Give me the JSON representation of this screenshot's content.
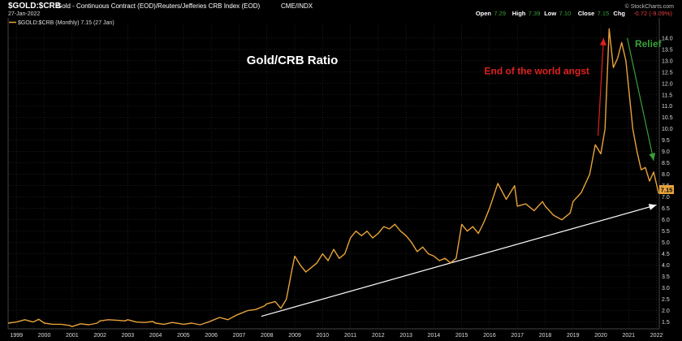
{
  "header": {
    "symbol": "$GOLD:$CRB",
    "description": "Gold - Continuous Contract (EOD)/Reuters/Jefferies CRB Index (EOD)",
    "exchange": "CME/INDX",
    "date": "27-Jan-2022",
    "stats": [
      {
        "label": "Open",
        "value": "7.29"
      },
      {
        "label": "High",
        "value": "7.39"
      },
      {
        "label": "Low",
        "value": "7.10"
      },
      {
        "label": "Close",
        "value": "7.15"
      },
      {
        "label": "Chg",
        "value": "-0.72 (-9.09%)"
      }
    ],
    "legend": "$GOLD:$CRB (Monthly) 7.15 (27 Jan)",
    "watermark": "© StockCharts.com"
  },
  "colors": {
    "background": "#000000",
    "price_line": "#e8a33a",
    "grid": "#2e2e2e",
    "axis_text": "#dddddd",
    "annotation_red": "#e02020",
    "annotation_green": "#3aa03a",
    "trendline": "#ffffff",
    "stat_up": "#3aa03a",
    "stat_down": "#e04040"
  },
  "chart_data": {
    "type": "line",
    "title": "Gold/CRB Ratio",
    "xlabel": "",
    "ylabel": "",
    "xlim": [
      1998.7,
      2022.1
    ],
    "ylim": [
      1.2,
      14.6
    ],
    "y_scale": "linear",
    "grid": true,
    "x_ticks": [
      "1999",
      "2000",
      "2001",
      "2002",
      "2003",
      "2004",
      "2005",
      "2006",
      "2007",
      "2008",
      "2009",
      "2010",
      "2011",
      "2012",
      "2013",
      "2014",
      "2015",
      "2016",
      "2017",
      "2018",
      "2019",
      "2020",
      "2021",
      "2022"
    ],
    "y_ticks": [
      "1.5",
      "2.0",
      "2.5",
      "3.0",
      "3.5",
      "4.0",
      "4.5",
      "5.0",
      "5.5",
      "6.0",
      "6.5",
      "7.0",
      "7.5",
      "8.0",
      "8.5",
      "9.0",
      "9.5",
      "10.0",
      "10.5",
      "11.0",
      "11.5",
      "12.0",
      "12.5",
      "13.0",
      "13.5",
      "14.0"
    ],
    "last_value_label": "7.15",
    "series": [
      {
        "name": "$GOLD:$CRB (Monthly)",
        "points": [
          [
            1998.7,
            1.45
          ],
          [
            1999.0,
            1.5
          ],
          [
            1999.3,
            1.6
          ],
          [
            1999.6,
            1.5
          ],
          [
            1999.8,
            1.62
          ],
          [
            2000.0,
            1.45
          ],
          [
            2000.3,
            1.4
          ],
          [
            2000.6,
            1.4
          ],
          [
            2000.9,
            1.35
          ],
          [
            2001.0,
            1.3
          ],
          [
            2001.3,
            1.42
          ],
          [
            2001.6,
            1.38
          ],
          [
            2001.9,
            1.45
          ],
          [
            2002.0,
            1.55
          ],
          [
            2002.3,
            1.6
          ],
          [
            2002.6,
            1.58
          ],
          [
            2002.9,
            1.55
          ],
          [
            2003.0,
            1.6
          ],
          [
            2003.3,
            1.5
          ],
          [
            2003.6,
            1.48
          ],
          [
            2003.9,
            1.52
          ],
          [
            2004.0,
            1.45
          ],
          [
            2004.3,
            1.4
          ],
          [
            2004.6,
            1.48
          ],
          [
            2004.9,
            1.42
          ],
          [
            2005.0,
            1.4
          ],
          [
            2005.3,
            1.45
          ],
          [
            2005.6,
            1.38
          ],
          [
            2005.9,
            1.5
          ],
          [
            2006.0,
            1.55
          ],
          [
            2006.3,
            1.7
          ],
          [
            2006.6,
            1.6
          ],
          [
            2006.9,
            1.8
          ],
          [
            2007.0,
            1.85
          ],
          [
            2007.3,
            2.0
          ],
          [
            2007.6,
            2.05
          ],
          [
            2007.9,
            2.2
          ],
          [
            2008.0,
            2.3
          ],
          [
            2008.3,
            2.4
          ],
          [
            2008.5,
            2.1
          ],
          [
            2008.7,
            2.5
          ],
          [
            2008.9,
            3.8
          ],
          [
            2009.0,
            4.4
          ],
          [
            2009.2,
            4.0
          ],
          [
            2009.4,
            3.7
          ],
          [
            2009.6,
            3.9
          ],
          [
            2009.8,
            4.1
          ],
          [
            2010.0,
            4.5
          ],
          [
            2010.2,
            4.2
          ],
          [
            2010.4,
            4.7
          ],
          [
            2010.6,
            4.3
          ],
          [
            2010.8,
            4.5
          ],
          [
            2011.0,
            5.2
          ],
          [
            2011.2,
            5.5
          ],
          [
            2011.4,
            5.3
          ],
          [
            2011.6,
            5.5
          ],
          [
            2011.8,
            5.2
          ],
          [
            2012.0,
            5.4
          ],
          [
            2012.2,
            5.7
          ],
          [
            2012.4,
            5.6
          ],
          [
            2012.6,
            5.8
          ],
          [
            2012.8,
            5.5
          ],
          [
            2013.0,
            5.3
          ],
          [
            2013.2,
            5.0
          ],
          [
            2013.4,
            4.6
          ],
          [
            2013.6,
            4.8
          ],
          [
            2013.8,
            4.5
          ],
          [
            2014.0,
            4.4
          ],
          [
            2014.2,
            4.2
          ],
          [
            2014.4,
            4.3
          ],
          [
            2014.6,
            4.1
          ],
          [
            2014.8,
            4.3
          ],
          [
            2015.0,
            5.8
          ],
          [
            2015.2,
            5.5
          ],
          [
            2015.4,
            5.7
          ],
          [
            2015.6,
            5.4
          ],
          [
            2015.8,
            5.9
          ],
          [
            2016.0,
            6.5
          ],
          [
            2016.3,
            7.6
          ],
          [
            2016.6,
            6.9
          ],
          [
            2016.9,
            7.5
          ],
          [
            2017.0,
            6.6
          ],
          [
            2017.3,
            6.7
          ],
          [
            2017.6,
            6.4
          ],
          [
            2017.9,
            6.8
          ],
          [
            2018.0,
            6.6
          ],
          [
            2018.3,
            6.2
          ],
          [
            2018.6,
            6.0
          ],
          [
            2018.9,
            6.3
          ],
          [
            2019.0,
            6.8
          ],
          [
            2019.3,
            7.2
          ],
          [
            2019.6,
            8.0
          ],
          [
            2019.8,
            9.3
          ],
          [
            2020.0,
            8.9
          ],
          [
            2020.15,
            10.0
          ],
          [
            2020.3,
            14.4
          ],
          [
            2020.45,
            12.7
          ],
          [
            2020.6,
            13.1
          ],
          [
            2020.75,
            13.8
          ],
          [
            2020.9,
            13.0
          ],
          [
            2021.0,
            11.8
          ],
          [
            2021.15,
            10.0
          ],
          [
            2021.3,
            9.0
          ],
          [
            2021.45,
            8.2
          ],
          [
            2021.6,
            8.3
          ],
          [
            2021.75,
            7.7
          ],
          [
            2021.9,
            8.1
          ],
          [
            2022.08,
            7.15
          ]
        ]
      }
    ],
    "annotations": [
      {
        "text": "End of the world angst",
        "color": "#e02020",
        "x": 2017.7,
        "y": 12.4
      },
      {
        "text": "Relief",
        "color": "#3aa03a",
        "x": 2021.7,
        "y": 13.6
      }
    ],
    "arrows": [
      {
        "from": [
          2019.9,
          9.7
        ],
        "to": [
          2020.1,
          14.0
        ],
        "color": "#e02020"
      },
      {
        "from": [
          2020.95,
          14.0
        ],
        "to": [
          2021.9,
          8.6
        ],
        "color": "#3aa03a"
      },
      {
        "from": [
          2007.8,
          1.75
        ],
        "to": [
          2022.0,
          6.65
        ],
        "color": "#ffffff"
      }
    ]
  }
}
